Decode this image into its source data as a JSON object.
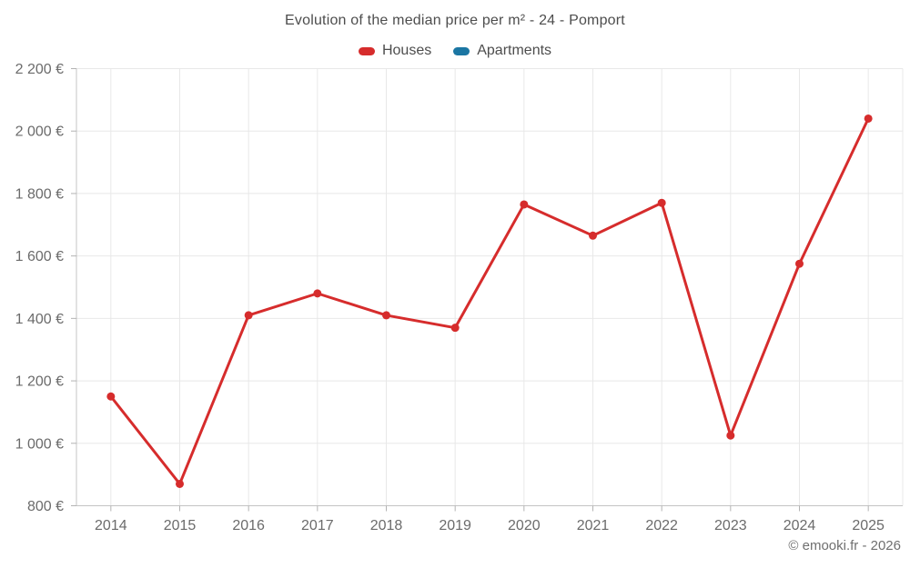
{
  "header": {
    "title": "Evolution of the median price per m² - 24 - Pomport"
  },
  "footer": {
    "text": "© emooki.fr - 2026"
  },
  "colors": {
    "houses_red": "#d62c2c",
    "apartments_blue": "#1b76a3",
    "gridline": "#e8e8e8",
    "axis_line": "#c4c4c4",
    "axis_tick": "#b3b3b3",
    "axis_label": "#6b6b6b",
    "title_text": "#4d4d4d",
    "footer_text": "#6f6f6f",
    "background": "#ffffff"
  },
  "chart_data": {
    "type": "line",
    "title": "Evolution of the median price per m² - 24 - Pomport",
    "categories": [
      "2014",
      "2015",
      "2016",
      "2017",
      "2018",
      "2019",
      "2020",
      "2021",
      "2022",
      "2023",
      "2024",
      "2025"
    ],
    "series": [
      {
        "name": "Houses",
        "color": "#d62c2c",
        "values": [
          1150,
          870,
          1410,
          1480,
          1410,
          1370,
          1765,
          1665,
          1770,
          1025,
          1575,
          2040
        ]
      },
      {
        "name": "Apartments",
        "color": "#1b76a3",
        "values": []
      }
    ],
    "xlabel": "",
    "ylabel": "",
    "ylim": [
      800,
      2200
    ],
    "ytick_step": 200,
    "ytick_labels": [
      "800 €",
      "1 000 €",
      "1 200 €",
      "1 400 €",
      "1 600 €",
      "1 800 €",
      "2 000 €",
      "2 200 €"
    ],
    "grid": true,
    "legend_position": "top",
    "marker": "circle"
  }
}
